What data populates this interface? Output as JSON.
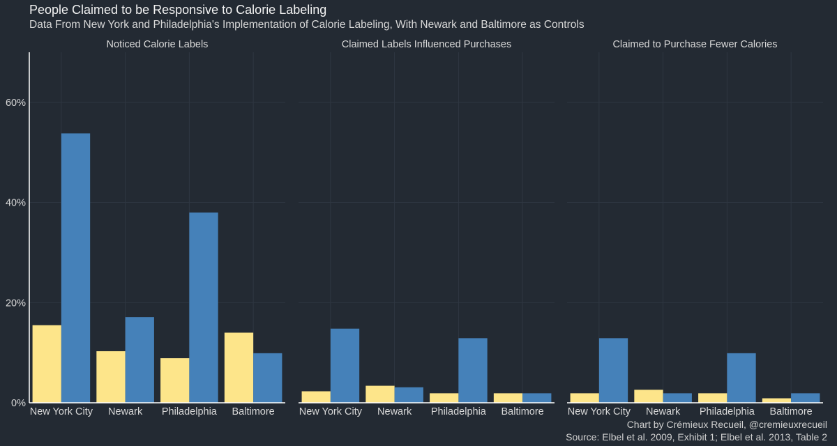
{
  "title": "People Claimed to be Responsive to Calorie Labeling",
  "subtitle": "Data From New York and Philadelphia's Implementation of Calorie Labeling, With Newark and Baltimore as Controls",
  "caption_line1": "Chart by Crémieux Recueil, @cremieuxrecueil",
  "caption_line2": "Source: Elbel et al. 2009, Exhibit 1; Elbel et al. 2013, Table 2",
  "colors": {
    "background": "#232a33",
    "gridline": "#2f3742",
    "axis_line": "#ffffff",
    "text": "#d8d8d8",
    "series_before": "#fde58a",
    "series_after": "#4581b9"
  },
  "chart_data": {
    "type": "bar",
    "layout": "faceted grouped bars, 3 panels side by side",
    "ylim": [
      0,
      70
    ],
    "y_ticks": [
      "0%",
      "20%",
      "40%",
      "60%"
    ],
    "y_tick_values": [
      0,
      20,
      40,
      60
    ],
    "grid": true,
    "legend": "none",
    "panels": [
      {
        "title": "Noticed Calorie Labels",
        "categories": [
          "New York City",
          "Newark",
          "Philadelphia",
          "Baltimore"
        ],
        "series": [
          {
            "values": [
              15.5,
              10.3,
              8.9,
              14.0
            ],
            "color": "#fde58a"
          },
          {
            "values": [
              53.8,
              17.1,
              38.0,
              9.9
            ],
            "color": "#4581b9"
          }
        ]
      },
      {
        "title": "Claimed Labels Influenced Purchases",
        "categories": [
          "New York City",
          "Newark",
          "Philadelphia",
          "Baltimore"
        ],
        "series": [
          {
            "values": [
              2.3,
              3.4,
              1.9,
              1.9
            ],
            "color": "#fde58a"
          },
          {
            "values": [
              14.8,
              3.1,
              12.9,
              1.9
            ],
            "color": "#4581b9"
          }
        ]
      },
      {
        "title": "Claimed to Purchase Fewer Calories",
        "categories": [
          "New York City",
          "Newark",
          "Philadelphia",
          "Baltimore"
        ],
        "series": [
          {
            "values": [
              1.9,
              2.6,
              1.9,
              0.9
            ],
            "color": "#fde58a"
          },
          {
            "values": [
              12.9,
              1.9,
              9.9,
              1.9
            ],
            "color": "#4581b9"
          }
        ]
      }
    ]
  }
}
